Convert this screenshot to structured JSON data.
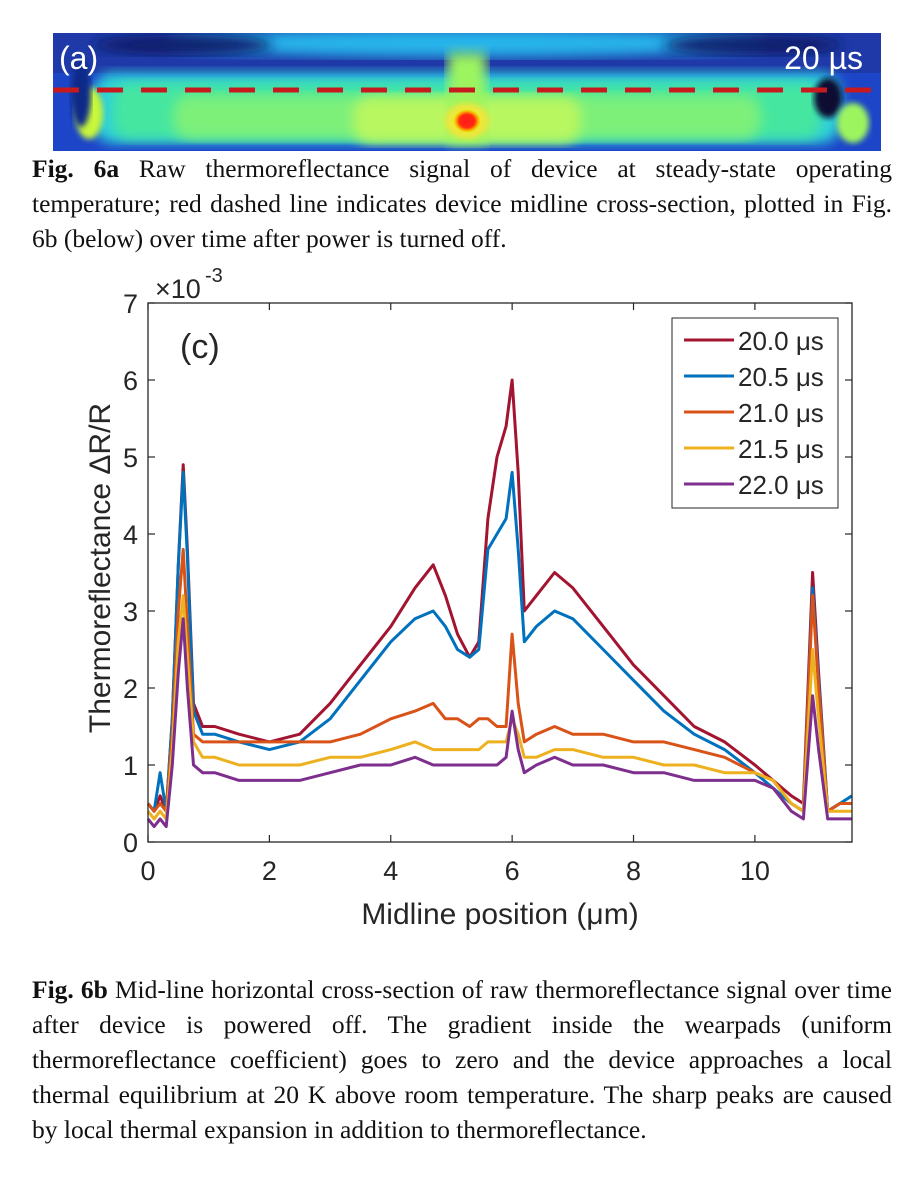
{
  "figure_a": {
    "panel_label": "(a)",
    "time_label": "20 µs",
    "caption_bold": "Fig. 6a",
    "caption_text": "Raw thermoreflectance signal of device at steady-state operating temperature; red dashed line indicates device midline cross-section, plotted in Fig. 6b (below) over time after power is turned off."
  },
  "figure_b": {
    "caption_bold": "Fig. 6b",
    "caption_text": "Mid-line horizontal cross-section of raw thermoreflectance signal over time after device is powered off. The gradient inside the wearpads (uniform thermoreflectance coefficient) goes to zero and the device approaches a local thermal equilibrium at 20 K above room temperature. The sharp peaks are caused by local thermal expansion in addition to thermoreflectance."
  },
  "chart_data": {
    "type": "line",
    "panel_label": "(c)",
    "xlabel": "Midline position (μm)",
    "ylabel": "Thermoreflectance ΔR/R",
    "y_multiplier": "×10",
    "y_exponent": "-3",
    "xlim": [
      0,
      11.6
    ],
    "ylim": [
      0,
      7
    ],
    "xticks": [
      0,
      2,
      4,
      6,
      8,
      10
    ],
    "yticks": [
      0,
      1,
      2,
      3,
      4,
      5,
      6,
      7
    ],
    "grid": false,
    "legend_position": "top-right",
    "x": [
      0,
      0.1,
      0.2,
      0.3,
      0.4,
      0.5,
      0.58,
      0.65,
      0.75,
      0.9,
      1.1,
      1.5,
      2.0,
      2.5,
      3.0,
      3.5,
      4.0,
      4.4,
      4.7,
      4.9,
      5.1,
      5.3,
      5.45,
      5.6,
      5.75,
      5.9,
      6.0,
      6.1,
      6.2,
      6.4,
      6.7,
      7.0,
      7.5,
      8.0,
      8.5,
      9.0,
      9.5,
      10.0,
      10.3,
      10.6,
      10.8,
      10.95,
      11.05,
      11.2,
      11.4,
      11.6
    ],
    "series": [
      {
        "name": "20.0 μs",
        "color": "#a2142f",
        "values": [
          0.5,
          0.4,
          0.6,
          0.4,
          1.6,
          3.6,
          4.9,
          3.8,
          1.8,
          1.5,
          1.5,
          1.4,
          1.3,
          1.4,
          1.8,
          2.3,
          2.8,
          3.3,
          3.6,
          3.2,
          2.7,
          2.4,
          2.6,
          4.2,
          5.0,
          5.4,
          6.0,
          4.8,
          3.0,
          3.2,
          3.5,
          3.3,
          2.8,
          2.3,
          1.9,
          1.5,
          1.3,
          1.0,
          0.8,
          0.6,
          0.5,
          3.5,
          2.2,
          0.4,
          0.5,
          0.5
        ]
      },
      {
        "name": "20.5 μs",
        "color": "#0072bd",
        "values": [
          0.5,
          0.4,
          0.9,
          0.4,
          1.6,
          3.6,
          4.8,
          3.7,
          1.7,
          1.4,
          1.4,
          1.3,
          1.2,
          1.3,
          1.6,
          2.1,
          2.6,
          2.9,
          3.0,
          2.8,
          2.5,
          2.4,
          2.5,
          3.8,
          4.0,
          4.2,
          4.8,
          3.8,
          2.6,
          2.8,
          3.0,
          2.9,
          2.5,
          2.1,
          1.7,
          1.4,
          1.2,
          0.9,
          0.7,
          0.5,
          0.4,
          3.3,
          2.1,
          0.4,
          0.5,
          0.6
        ]
      },
      {
        "name": "21.0 μs",
        "color": "#d95319",
        "values": [
          0.5,
          0.4,
          0.5,
          0.4,
          1.4,
          3.0,
          3.8,
          2.8,
          1.4,
          1.3,
          1.3,
          1.3,
          1.3,
          1.3,
          1.3,
          1.4,
          1.6,
          1.7,
          1.8,
          1.6,
          1.6,
          1.5,
          1.6,
          1.6,
          1.5,
          1.5,
          2.7,
          1.8,
          1.3,
          1.4,
          1.5,
          1.4,
          1.4,
          1.3,
          1.3,
          1.2,
          1.1,
          0.9,
          0.8,
          0.5,
          0.4,
          3.2,
          2.0,
          0.4,
          0.5,
          0.5
        ]
      },
      {
        "name": "21.5 μs",
        "color": "#edb120",
        "values": [
          0.4,
          0.3,
          0.4,
          0.3,
          1.2,
          2.6,
          3.2,
          2.4,
          1.3,
          1.1,
          1.1,
          1.0,
          1.0,
          1.0,
          1.1,
          1.1,
          1.2,
          1.3,
          1.2,
          1.2,
          1.2,
          1.2,
          1.2,
          1.3,
          1.3,
          1.3,
          1.6,
          1.4,
          1.1,
          1.1,
          1.2,
          1.2,
          1.1,
          1.1,
          1.0,
          1.0,
          0.9,
          0.9,
          0.8,
          0.5,
          0.4,
          2.5,
          1.6,
          0.4,
          0.4,
          0.4
        ]
      },
      {
        "name": "22.0 μs",
        "color": "#7e2f8e",
        "values": [
          0.3,
          0.2,
          0.3,
          0.2,
          1.0,
          2.2,
          2.9,
          2.0,
          1.0,
          0.9,
          0.9,
          0.8,
          0.8,
          0.8,
          0.9,
          1.0,
          1.0,
          1.1,
          1.0,
          1.0,
          1.0,
          1.0,
          1.0,
          1.0,
          1.0,
          1.1,
          1.7,
          1.2,
          0.9,
          1.0,
          1.1,
          1.0,
          1.0,
          0.9,
          0.9,
          0.8,
          0.8,
          0.8,
          0.7,
          0.4,
          0.3,
          1.9,
          1.2,
          0.3,
          0.3,
          0.3
        ]
      }
    ]
  }
}
